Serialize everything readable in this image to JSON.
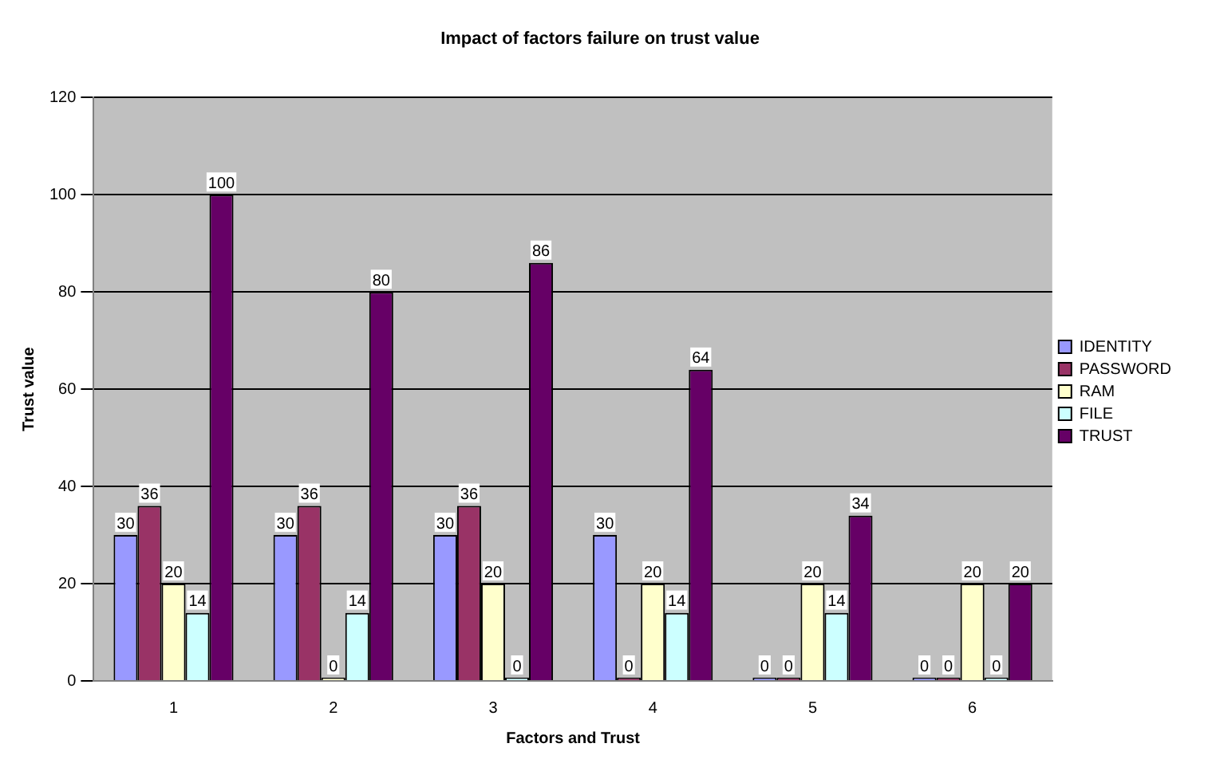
{
  "chart_data": {
    "type": "bar",
    "title": "Impact of factors failure on trust value",
    "xlabel": "Factors and Trust",
    "ylabel": "Trust value",
    "categories": [
      "1",
      "2",
      "3",
      "4",
      "5",
      "6"
    ],
    "series": [
      {
        "name": "IDENTITY",
        "color": "#9999ff",
        "values": [
          30,
          30,
          30,
          30,
          0,
          0
        ]
      },
      {
        "name": "PASSWORD",
        "color": "#993366",
        "values": [
          36,
          36,
          36,
          0,
          0,
          0
        ]
      },
      {
        "name": "RAM",
        "color": "#ffffcc",
        "values": [
          20,
          0,
          20,
          20,
          20,
          20
        ]
      },
      {
        "name": "FILE",
        "color": "#ccffff",
        "values": [
          14,
          14,
          0,
          14,
          14,
          0
        ]
      },
      {
        "name": "TRUST",
        "color": "#660066",
        "values": [
          100,
          80,
          86,
          64,
          34,
          20
        ]
      }
    ],
    "ylim": [
      0,
      120
    ],
    "yticks": [
      0,
      20,
      40,
      60,
      80,
      100,
      120
    ],
    "grid": "y",
    "legend": "right",
    "data_labels": true
  }
}
